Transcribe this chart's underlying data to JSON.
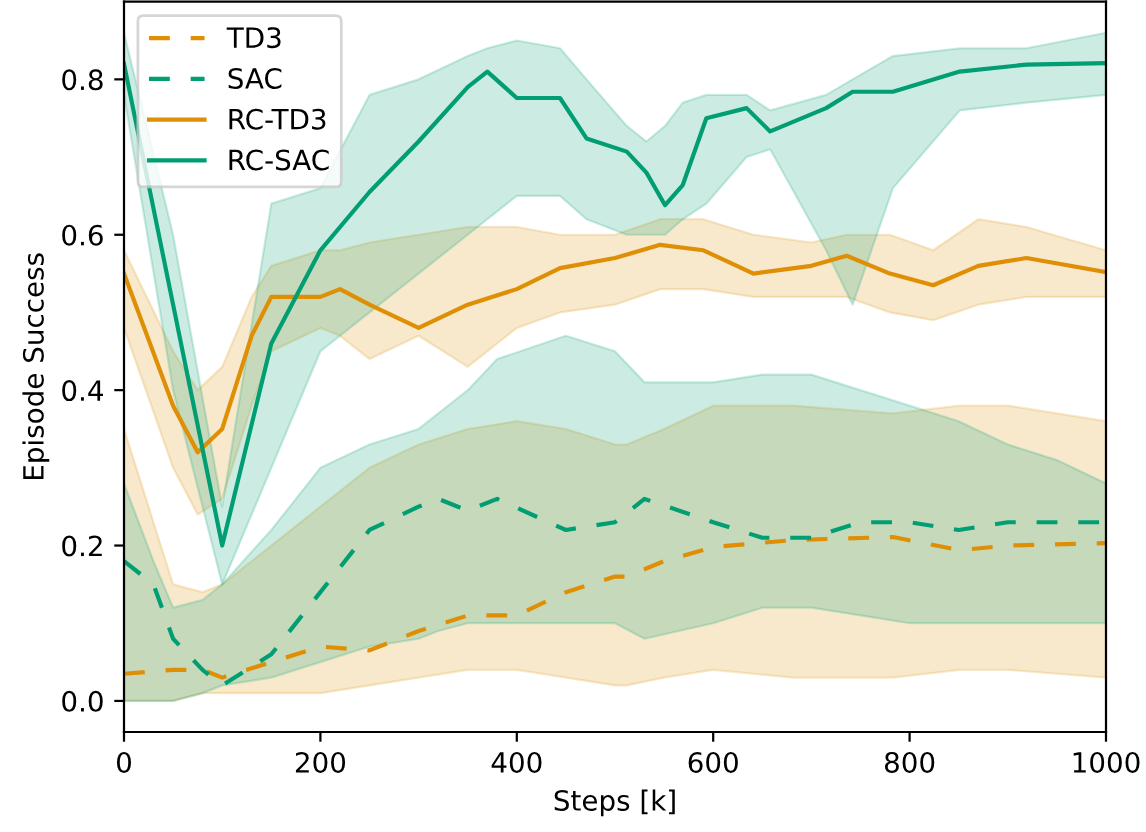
{
  "chart_data": {
    "type": "line",
    "xlabel": "Steps [k]",
    "ylabel": "Episode Success",
    "xlim": [
      0,
      1000
    ],
    "xticks": [
      0,
      200,
      400,
      600,
      800,
      1000
    ],
    "ylim": [
      -0.04,
      0.9
    ],
    "yticks": [
      {
        "value": 0,
        "label": "0.0"
      },
      0.2,
      0.4,
      0.6,
      0.8
    ],
    "legend": "top left",
    "grid": false,
    "series": [
      {
        "name": "TD3",
        "color": "#de8f05",
        "line_style": "dashed",
        "x": [
          0,
          50,
          80,
          100,
          150,
          200,
          250,
          300,
          350,
          400,
          450,
          500,
          512,
          550,
          600,
          681,
          783,
          851,
          900,
          1000
        ],
        "values": [
          0.035,
          0.04,
          0.04,
          0.03,
          0.05,
          0.07,
          0.065,
          0.09,
          0.11,
          0.11,
          0.14,
          0.16,
          0.16,
          0.18,
          0.198,
          0.207,
          0.211,
          0.194,
          0.2,
          0.203
        ],
        "upper": [
          0.35,
          0.15,
          0.14,
          0.15,
          0.2,
          0.25,
          0.3,
          0.33,
          0.35,
          0.36,
          0.35,
          0.33,
          0.33,
          0.35,
          0.38,
          0.38,
          0.37,
          0.38,
          0.38,
          0.36
        ],
        "lower": [
          0,
          0.0,
          0.01,
          0.01,
          0.01,
          0.01,
          0.02,
          0.03,
          0.04,
          0.04,
          0.03,
          0.02,
          0.02,
          0.03,
          0.04,
          0.03,
          0.03,
          0.04,
          0.04,
          0.03
        ]
      },
      {
        "name": "SAC",
        "color": "#029e73",
        "line_style": "dashed",
        "x": [
          0,
          30,
          50,
          80,
          100,
          150,
          200,
          250,
          300,
          320,
          350,
          380,
          450,
          500,
          530,
          600,
          650,
          700,
          750,
          800,
          850,
          900,
          950,
          1000
        ],
        "values": [
          0.18,
          0.15,
          0.08,
          0.04,
          0.02,
          0.06,
          0.14,
          0.22,
          0.25,
          0.26,
          0.245,
          0.26,
          0.22,
          0.23,
          0.26,
          0.23,
          0.21,
          0.21,
          0.23,
          0.23,
          0.22,
          0.23,
          0.23,
          0.23
        ],
        "upper": [
          0.28,
          0.18,
          0.12,
          0.13,
          0.15,
          0.22,
          0.3,
          0.33,
          0.35,
          0.37,
          0.4,
          0.44,
          0.47,
          0.45,
          0.41,
          0.41,
          0.42,
          0.42,
          0.4,
          0.38,
          0.36,
          0.33,
          0.31,
          0.28
        ],
        "lower": [
          0.0,
          0.0,
          0.0,
          0.01,
          0.02,
          0.03,
          0.05,
          0.07,
          0.08,
          0.09,
          0.1,
          0.1,
          0.1,
          0.1,
          0.08,
          0.1,
          0.12,
          0.12,
          0.11,
          0.1,
          0.1,
          0.1,
          0.1,
          0.1
        ]
      },
      {
        "name": "RC-TD3",
        "color": "#de8f05",
        "line_style": "solid",
        "x": [
          0,
          50,
          75,
          100,
          130,
          150,
          200,
          220,
          250,
          300,
          350,
          400,
          444,
          500,
          546,
          590,
          641,
          700,
          736,
          780,
          824,
          870,
          919,
          1000
        ],
        "values": [
          0.55,
          0.38,
          0.32,
          0.35,
          0.47,
          0.52,
          0.52,
          0.53,
          0.51,
          0.48,
          0.51,
          0.53,
          0.557,
          0.57,
          0.587,
          0.58,
          0.55,
          0.56,
          0.573,
          0.55,
          0.535,
          0.56,
          0.57,
          0.552
        ],
        "upper": [
          0.58,
          0.45,
          0.4,
          0.43,
          0.52,
          0.56,
          0.58,
          0.58,
          0.59,
          0.6,
          0.61,
          0.61,
          0.6,
          0.6,
          0.62,
          0.62,
          0.6,
          0.59,
          0.6,
          0.6,
          0.58,
          0.62,
          0.61,
          0.58
        ],
        "lower": [
          0.48,
          0.3,
          0.24,
          0.26,
          0.38,
          0.45,
          0.48,
          0.47,
          0.44,
          0.47,
          0.43,
          0.48,
          0.5,
          0.51,
          0.53,
          0.53,
          0.52,
          0.52,
          0.52,
          0.5,
          0.49,
          0.51,
          0.52,
          0.52
        ]
      },
      {
        "name": "RC-SAC",
        "color": "#029e73",
        "line_style": "solid",
        "x": [
          0,
          50,
          100,
          150,
          200,
          250,
          300,
          350,
          370,
          400,
          444,
          471,
          512,
          532,
          551,
          569,
          593,
          634,
          658,
          715,
          742,
          783,
          851,
          919,
          1000
        ],
        "values": [
          0.82,
          0.51,
          0.2,
          0.46,
          0.58,
          0.655,
          0.72,
          0.79,
          0.81,
          0.776,
          0.776,
          0.724,
          0.707,
          0.68,
          0.638,
          0.664,
          0.75,
          0.763,
          0.733,
          0.763,
          0.784,
          0.784,
          0.81,
          0.819,
          0.821
        ],
        "upper": [
          0.86,
          0.6,
          0.25,
          0.64,
          0.66,
          0.78,
          0.8,
          0.83,
          0.84,
          0.85,
          0.84,
          0.8,
          0.74,
          0.72,
          0.74,
          0.77,
          0.78,
          0.78,
          0.76,
          0.78,
          0.8,
          0.83,
          0.84,
          0.84,
          0.86
        ],
        "lower": [
          0.78,
          0.4,
          0.15,
          0.3,
          0.45,
          0.5,
          0.55,
          0.6,
          0.62,
          0.65,
          0.65,
          0.62,
          0.6,
          0.6,
          0.6,
          0.62,
          0.64,
          0.7,
          0.71,
          0.58,
          0.51,
          0.66,
          0.76,
          0.77,
          0.78
        ]
      }
    ]
  }
}
